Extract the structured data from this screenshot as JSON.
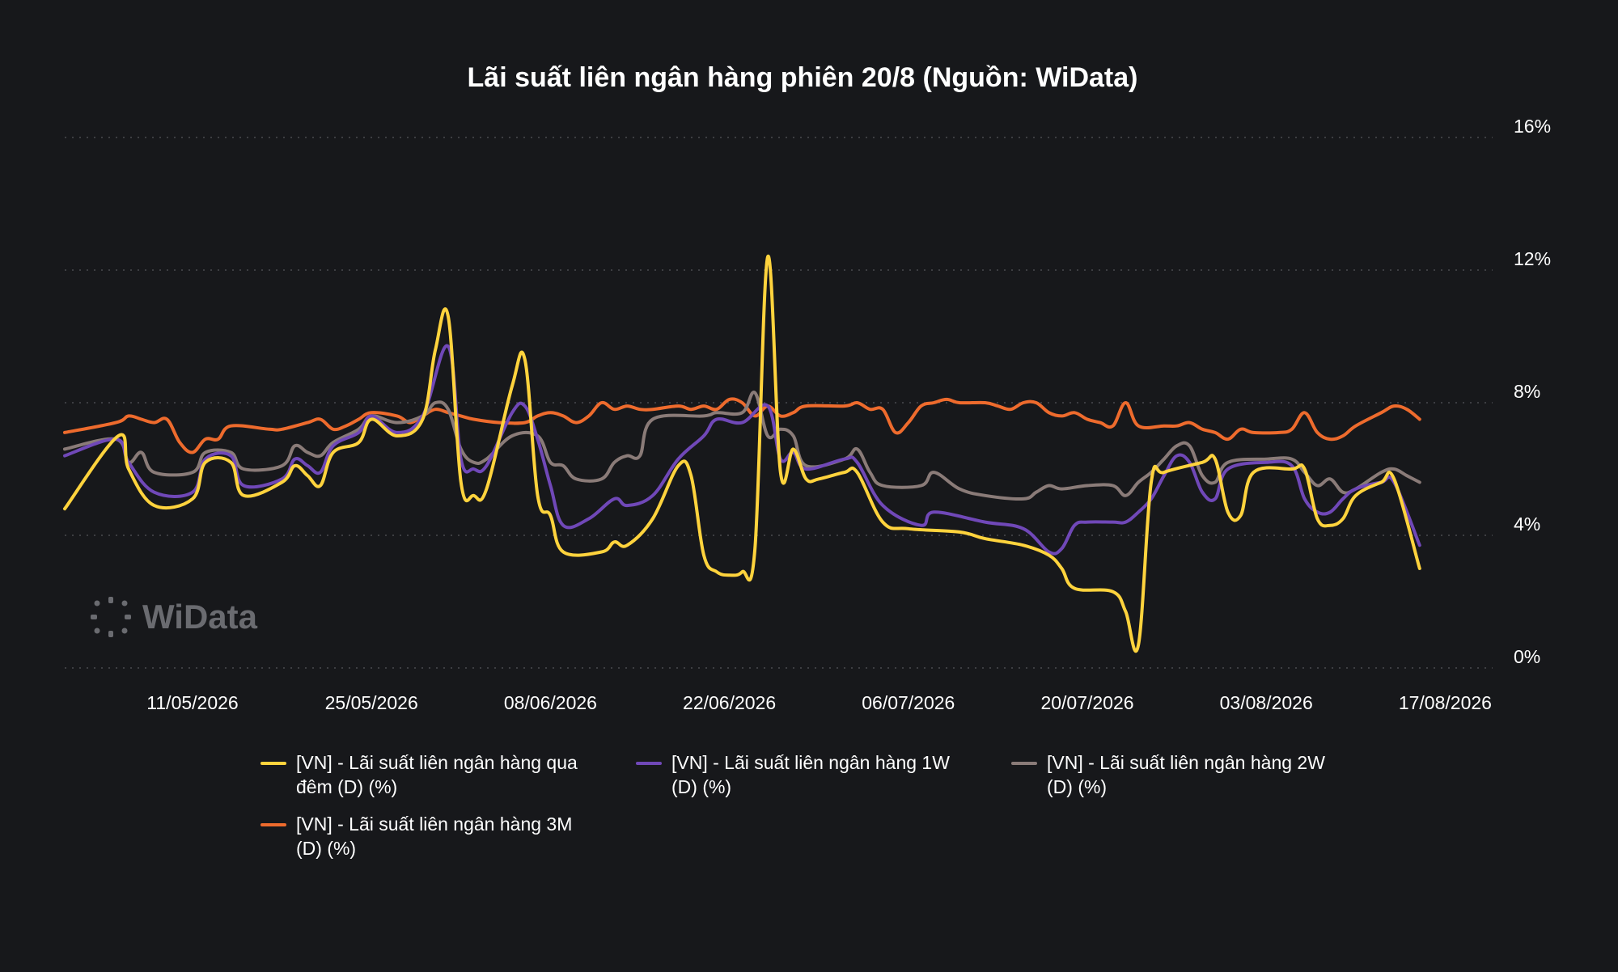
{
  "chart_data": {
    "type": "line",
    "title": "Lãi suất liên ngân hàng phiên 20/8 (Nguồn: WiData)",
    "y_ticks": [
      "16%",
      "12%",
      "8%",
      "4%",
      "0%"
    ],
    "ylim": [
      0,
      16
    ],
    "y_axis_side": "right",
    "x_tick_labels": [
      "11/05/2026",
      "25/05/2026",
      "08/06/2026",
      "22/06/2026",
      "06/07/2026",
      "20/07/2026",
      "03/08/2026",
      "17/08/2026"
    ],
    "x_tick_days": [
      10,
      24,
      38,
      52,
      66,
      80,
      94,
      108
    ],
    "x_range_days": [
      0,
      111
    ],
    "grid": "horizontal dotted",
    "legend_position": "bottom",
    "watermark": "WiData",
    "series": [
      {
        "name": "[VN] - Lãi suất liên ngân hàng qua đêm (D) (%)",
        "color": "#ffd33d",
        "points": [
          [
            0,
            4.8
          ],
          [
            4.2,
            7.0
          ],
          [
            5,
            6.0
          ],
          [
            7,
            4.9
          ],
          [
            10,
            5.1
          ],
          [
            11,
            6.2
          ],
          [
            13,
            6.2
          ],
          [
            14,
            5.2
          ],
          [
            17,
            5.6
          ],
          [
            18,
            6.1
          ],
          [
            19,
            5.8
          ],
          [
            20,
            5.5
          ],
          [
            21,
            6.5
          ],
          [
            23,
            6.8
          ],
          [
            24,
            7.5
          ],
          [
            26,
            7.0
          ],
          [
            28,
            7.5
          ],
          [
            29,
            9.6
          ],
          [
            30,
            10.6
          ],
          [
            31,
            5.6
          ],
          [
            32,
            5.2
          ],
          [
            33,
            5.4
          ],
          [
            35,
            8.5
          ],
          [
            36,
            9.3
          ],
          [
            37,
            5.2
          ],
          [
            38,
            4.6
          ],
          [
            39,
            3.5
          ],
          [
            42,
            3.5
          ],
          [
            43,
            3.8
          ],
          [
            44,
            3.7
          ],
          [
            46,
            4.5
          ],
          [
            48,
            6.1
          ],
          [
            49,
            5.8
          ],
          [
            50,
            3.4
          ],
          [
            51,
            2.9
          ],
          [
            52,
            2.8
          ],
          [
            53,
            2.9
          ],
          [
            54,
            3.6
          ],
          [
            55,
            12.4
          ],
          [
            56,
            5.9
          ],
          [
            57,
            6.6
          ],
          [
            58,
            5.7
          ],
          [
            59,
            5.7
          ],
          [
            61,
            5.9
          ],
          [
            62,
            5.9
          ],
          [
            64,
            4.4
          ],
          [
            66,
            4.2
          ],
          [
            70,
            4.1
          ],
          [
            72,
            3.9
          ],
          [
            75,
            3.7
          ],
          [
            77,
            3.4
          ],
          [
            78,
            3.0
          ],
          [
            79,
            2.4
          ],
          [
            82,
            2.3
          ],
          [
            83,
            1.7
          ],
          [
            84,
            0.7
          ],
          [
            85,
            5.6
          ],
          [
            86,
            5.9
          ],
          [
            89,
            6.2
          ],
          [
            90,
            6.3
          ],
          [
            91,
            4.7
          ],
          [
            92,
            4.6
          ],
          [
            93,
            5.9
          ],
          [
            96,
            6.0
          ],
          [
            97,
            6.0
          ],
          [
            98,
            4.5
          ],
          [
            99,
            4.3
          ],
          [
            100,
            4.5
          ],
          [
            101,
            5.2
          ],
          [
            103,
            5.6
          ],
          [
            104,
            5.7
          ],
          [
            106,
            3.0
          ]
        ]
      },
      {
        "name": "[VN] - Lãi suất liên ngân hàng 1W (D) (%)",
        "color": "#7048b8",
        "points": [
          [
            0,
            6.4
          ],
          [
            4,
            6.9
          ],
          [
            5,
            6.2
          ],
          [
            7,
            5.3
          ],
          [
            10,
            5.3
          ],
          [
            11,
            6.3
          ],
          [
            13,
            6.4
          ],
          [
            14,
            5.5
          ],
          [
            17,
            5.7
          ],
          [
            18,
            6.3
          ],
          [
            19,
            6.1
          ],
          [
            20,
            5.9
          ],
          [
            21,
            6.7
          ],
          [
            23,
            7.1
          ],
          [
            24,
            7.6
          ],
          [
            26,
            7.1
          ],
          [
            28,
            7.6
          ],
          [
            30,
            9.7
          ],
          [
            31,
            6.3
          ],
          [
            32,
            6.0
          ],
          [
            33,
            6.1
          ],
          [
            35,
            7.7
          ],
          [
            36,
            7.9
          ],
          [
            37,
            6.9
          ],
          [
            38,
            5.5
          ],
          [
            39,
            4.3
          ],
          [
            41,
            4.5
          ],
          [
            43,
            5.1
          ],
          [
            44,
            4.9
          ],
          [
            46,
            5.2
          ],
          [
            48,
            6.3
          ],
          [
            50,
            7.0
          ],
          [
            51,
            7.5
          ],
          [
            53,
            7.4
          ],
          [
            55,
            7.9
          ],
          [
            56,
            6.3
          ],
          [
            57,
            6.5
          ],
          [
            58,
            6.0
          ],
          [
            61,
            6.3
          ],
          [
            62,
            6.2
          ],
          [
            64,
            4.9
          ],
          [
            67,
            4.3
          ],
          [
            68,
            4.7
          ],
          [
            72,
            4.4
          ],
          [
            75,
            4.2
          ],
          [
            77,
            3.5
          ],
          [
            78,
            3.6
          ],
          [
            79,
            4.3
          ],
          [
            80,
            4.4
          ],
          [
            82,
            4.4
          ],
          [
            83,
            4.4
          ],
          [
            84,
            4.7
          ],
          [
            85,
            5.1
          ],
          [
            86,
            5.8
          ],
          [
            87,
            6.4
          ],
          [
            88,
            6.2
          ],
          [
            89,
            5.3
          ],
          [
            90,
            5.1
          ],
          [
            91,
            6.0
          ],
          [
            94,
            6.2
          ],
          [
            96,
            6.1
          ],
          [
            97,
            5.1
          ],
          [
            98,
            4.7
          ],
          [
            99,
            4.7
          ],
          [
            100,
            5.1
          ],
          [
            101,
            5.4
          ],
          [
            103,
            5.6
          ],
          [
            104,
            5.6
          ],
          [
            106,
            3.7
          ]
        ]
      },
      {
        "name": "[VN] - Lãi suất liên ngân hàng 2W (D) (%)",
        "color": "#8a7b78",
        "points": [
          [
            0,
            6.6
          ],
          [
            4,
            6.9
          ],
          [
            5,
            6.2
          ],
          [
            6,
            6.5
          ],
          [
            7,
            5.9
          ],
          [
            10,
            5.9
          ],
          [
            11,
            6.5
          ],
          [
            13,
            6.5
          ],
          [
            14,
            6.0
          ],
          [
            17,
            6.1
          ],
          [
            18,
            6.7
          ],
          [
            19,
            6.5
          ],
          [
            20,
            6.4
          ],
          [
            21,
            6.8
          ],
          [
            23,
            7.2
          ],
          [
            24,
            7.6
          ],
          [
            26,
            7.4
          ],
          [
            28,
            7.6
          ],
          [
            29,
            8.0
          ],
          [
            30,
            7.8
          ],
          [
            31,
            6.6
          ],
          [
            32,
            6.2
          ],
          [
            33,
            6.3
          ],
          [
            35,
            7.0
          ],
          [
            37,
            7.0
          ],
          [
            38,
            6.2
          ],
          [
            39,
            6.1
          ],
          [
            40,
            5.7
          ],
          [
            42,
            5.7
          ],
          [
            43,
            6.2
          ],
          [
            44,
            6.4
          ],
          [
            45,
            6.4
          ],
          [
            46,
            7.5
          ],
          [
            50,
            7.6
          ],
          [
            51,
            7.7
          ],
          [
            53,
            7.7
          ],
          [
            54,
            8.3
          ],
          [
            55,
            7.0
          ],
          [
            56,
            7.2
          ],
          [
            57,
            7.0
          ],
          [
            58,
            6.1
          ],
          [
            61,
            6.3
          ],
          [
            62,
            6.6
          ],
          [
            63,
            5.9
          ],
          [
            64,
            5.5
          ],
          [
            67,
            5.5
          ],
          [
            68,
            5.9
          ],
          [
            70,
            5.4
          ],
          [
            72,
            5.2
          ],
          [
            75,
            5.1
          ],
          [
            76,
            5.3
          ],
          [
            77,
            5.5
          ],
          [
            78,
            5.4
          ],
          [
            80,
            5.5
          ],
          [
            82,
            5.5
          ],
          [
            83,
            5.2
          ],
          [
            84,
            5.6
          ],
          [
            85,
            5.9
          ],
          [
            86,
            6.3
          ],
          [
            87,
            6.7
          ],
          [
            88,
            6.7
          ],
          [
            89,
            5.8
          ],
          [
            90,
            5.6
          ],
          [
            91,
            6.2
          ],
          [
            94,
            6.3
          ],
          [
            96,
            6.3
          ],
          [
            97,
            5.9
          ],
          [
            98,
            5.5
          ],
          [
            99,
            5.7
          ],
          [
            100,
            5.3
          ],
          [
            101,
            5.4
          ],
          [
            103,
            5.9
          ],
          [
            104,
            6.0
          ],
          [
            105,
            5.8
          ],
          [
            106,
            5.6
          ]
        ]
      },
      {
        "name": "[VN] - Lãi suất liên ngân hàng 3M (D) (%)",
        "color": "#ee6b2d",
        "points": [
          [
            0,
            7.1
          ],
          [
            4,
            7.4
          ],
          [
            5,
            7.6
          ],
          [
            6,
            7.5
          ],
          [
            7,
            7.4
          ],
          [
            8,
            7.5
          ],
          [
            9,
            6.8
          ],
          [
            10,
            6.5
          ],
          [
            11,
            6.9
          ],
          [
            12,
            6.9
          ],
          [
            13,
            7.3
          ],
          [
            16,
            7.2
          ],
          [
            17,
            7.2
          ],
          [
            19,
            7.4
          ],
          [
            20,
            7.5
          ],
          [
            21,
            7.2
          ],
          [
            22,
            7.3
          ],
          [
            23,
            7.5
          ],
          [
            24,
            7.7
          ],
          [
            26,
            7.6
          ],
          [
            27,
            7.4
          ],
          [
            28,
            7.6
          ],
          [
            29,
            7.8
          ],
          [
            30,
            7.7
          ],
          [
            31,
            7.6
          ],
          [
            32,
            7.5
          ],
          [
            34,
            7.4
          ],
          [
            36,
            7.4
          ],
          [
            37,
            7.6
          ],
          [
            38,
            7.7
          ],
          [
            39,
            7.6
          ],
          [
            40,
            7.4
          ],
          [
            41,
            7.6
          ],
          [
            42,
            8.0
          ],
          [
            43,
            7.8
          ],
          [
            44,
            7.9
          ],
          [
            45,
            7.8
          ],
          [
            46,
            7.8
          ],
          [
            48,
            7.9
          ],
          [
            49,
            7.8
          ],
          [
            50,
            7.9
          ],
          [
            51,
            7.8
          ],
          [
            52,
            8.1
          ],
          [
            53,
            8.0
          ],
          [
            54,
            7.6
          ],
          [
            55,
            7.9
          ],
          [
            56,
            7.6
          ],
          [
            57,
            7.7
          ],
          [
            58,
            7.9
          ],
          [
            61,
            7.9
          ],
          [
            62,
            8.0
          ],
          [
            63,
            7.8
          ],
          [
            64,
            7.8
          ],
          [
            65,
            7.1
          ],
          [
            66,
            7.4
          ],
          [
            67,
            7.9
          ],
          [
            68,
            8.0
          ],
          [
            69,
            8.1
          ],
          [
            70,
            8.0
          ],
          [
            72,
            8.0
          ],
          [
            73,
            7.9
          ],
          [
            74,
            7.8
          ],
          [
            75,
            8.0
          ],
          [
            76,
            8.0
          ],
          [
            77,
            7.7
          ],
          [
            78,
            7.6
          ],
          [
            79,
            7.7
          ],
          [
            80,
            7.5
          ],
          [
            81,
            7.4
          ],
          [
            82,
            7.3
          ],
          [
            83,
            8.0
          ],
          [
            84,
            7.3
          ],
          [
            86,
            7.3
          ],
          [
            87,
            7.3
          ],
          [
            88,
            7.4
          ],
          [
            89,
            7.2
          ],
          [
            90,
            7.1
          ],
          [
            91,
            6.9
          ],
          [
            92,
            7.2
          ],
          [
            93,
            7.1
          ],
          [
            95,
            7.1
          ],
          [
            96,
            7.2
          ],
          [
            97,
            7.7
          ],
          [
            98,
            7.1
          ],
          [
            99,
            6.9
          ],
          [
            100,
            7.0
          ],
          [
            101,
            7.3
          ],
          [
            103,
            7.7
          ],
          [
            104,
            7.9
          ],
          [
            105,
            7.8
          ],
          [
            106,
            7.5
          ]
        ]
      }
    ]
  }
}
